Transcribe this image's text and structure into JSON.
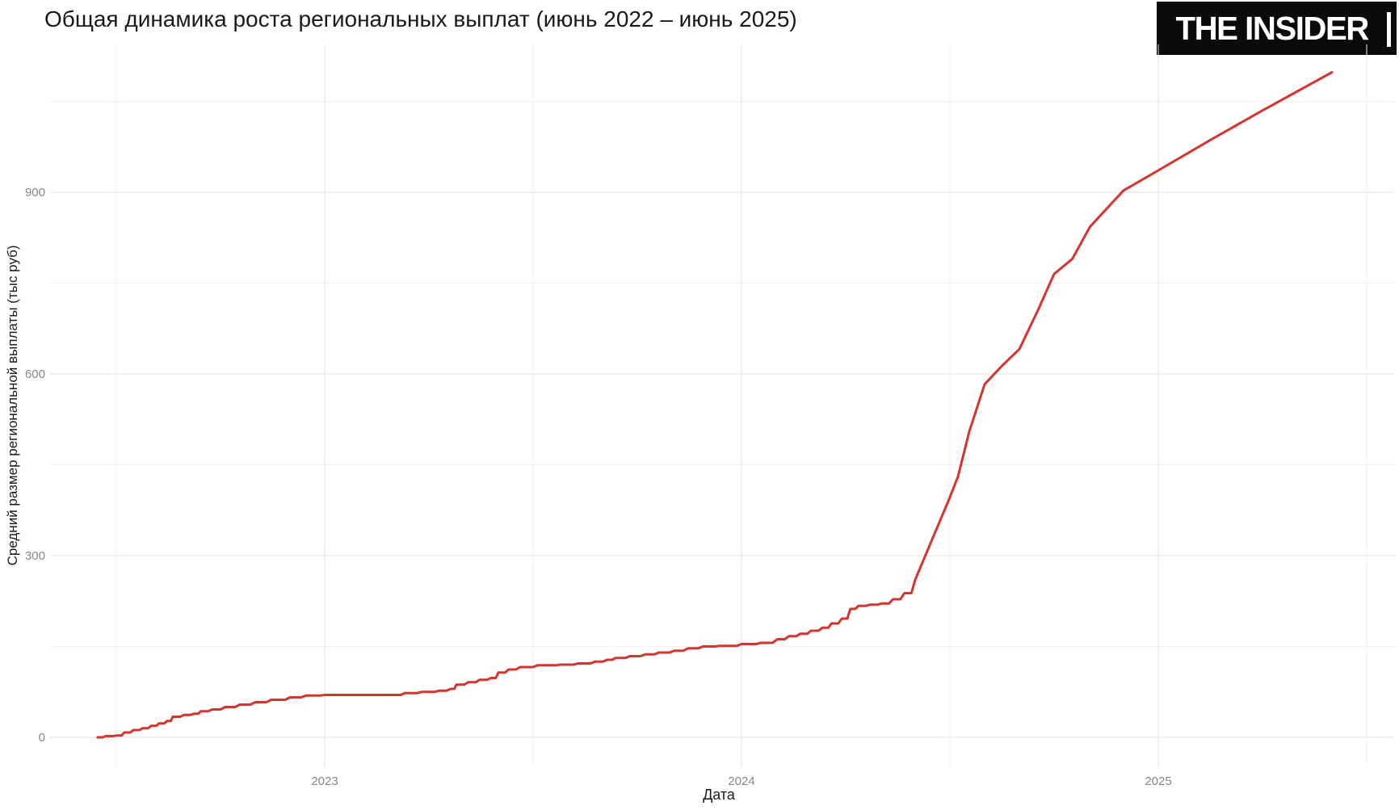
{
  "header": {
    "title": "Общая динамика роста региональных выплат (июнь 2022 – июнь 2025)",
    "logo_text": "THE INSIDER"
  },
  "chart_data": {
    "type": "line",
    "title": "Общая динамика роста региональных выплат (июнь 2022 – июнь 2025)",
    "xlabel": "Дата",
    "ylabel": "Средний размер региональной выплаты (тыс руб)",
    "x_tick_labels": [
      "2023",
      "2024",
      "2025"
    ],
    "x_major_ticks": [
      "2023-01-01",
      "2024-01-01",
      "2025-01-01"
    ],
    "x_minor_ticks": [
      "2022-07-01",
      "2023-07-01",
      "2024-07-01",
      "2025-07-01"
    ],
    "y_tick_labels": [
      "0",
      "300",
      "600",
      "900"
    ],
    "y_major_ticks": [
      0,
      300,
      600,
      900
    ],
    "y_minor_ticks": [
      150,
      450,
      750,
      1050
    ],
    "xlim": [
      "2022-06-01",
      "2025-07-15"
    ],
    "ylim": [
      0,
      1140
    ],
    "grid": "on",
    "legend": "none",
    "line_color": "#d6342e",
    "series": [
      {
        "name": "Средний размер региональной выплаты",
        "step_until": "2024-05-25",
        "points": [
          [
            "2022-06-15",
            0
          ],
          [
            "2022-06-22",
            2
          ],
          [
            "2022-07-01",
            3
          ],
          [
            "2022-07-08",
            8
          ],
          [
            "2022-07-16",
            12
          ],
          [
            "2022-07-24",
            15
          ],
          [
            "2022-08-01",
            19
          ],
          [
            "2022-08-08",
            23
          ],
          [
            "2022-08-15",
            27
          ],
          [
            "2022-08-20",
            34
          ],
          [
            "2022-08-30",
            37
          ],
          [
            "2022-09-08",
            39
          ],
          [
            "2022-09-14",
            43
          ],
          [
            "2022-09-24",
            46
          ],
          [
            "2022-10-05",
            50
          ],
          [
            "2022-10-18",
            54
          ],
          [
            "2022-11-01",
            58
          ],
          [
            "2022-11-15",
            62
          ],
          [
            "2022-12-01",
            66
          ],
          [
            "2022-12-15",
            69
          ],
          [
            "2023-01-01",
            70
          ],
          [
            "2023-02-01",
            70
          ],
          [
            "2023-03-01",
            70
          ],
          [
            "2023-03-10",
            73
          ],
          [
            "2023-03-25",
            75
          ],
          [
            "2023-04-10",
            77
          ],
          [
            "2023-04-20",
            80
          ],
          [
            "2023-04-25",
            87
          ],
          [
            "2023-05-05",
            91
          ],
          [
            "2023-05-15",
            95
          ],
          [
            "2023-05-25",
            98
          ],
          [
            "2023-06-01",
            107
          ],
          [
            "2023-06-10",
            112
          ],
          [
            "2023-06-20",
            116
          ],
          [
            "2023-07-05",
            119
          ],
          [
            "2023-07-25",
            120
          ],
          [
            "2023-08-10",
            122
          ],
          [
            "2023-08-25",
            125
          ],
          [
            "2023-09-05",
            128
          ],
          [
            "2023-09-12",
            131
          ],
          [
            "2023-09-25",
            134
          ],
          [
            "2023-10-08",
            137
          ],
          [
            "2023-10-20",
            140
          ],
          [
            "2023-11-03",
            143
          ],
          [
            "2023-11-15",
            147
          ],
          [
            "2023-11-28",
            150
          ],
          [
            "2023-12-12",
            151
          ],
          [
            "2024-01-01",
            154
          ],
          [
            "2024-01-18",
            156
          ],
          [
            "2024-02-02",
            162
          ],
          [
            "2024-02-12",
            167
          ],
          [
            "2024-02-22",
            171
          ],
          [
            "2024-03-01",
            176
          ],
          [
            "2024-03-11",
            181
          ],
          [
            "2024-03-19",
            188
          ],
          [
            "2024-03-28",
            196
          ],
          [
            "2024-04-05",
            212
          ],
          [
            "2024-04-12",
            217
          ],
          [
            "2024-04-22",
            219
          ],
          [
            "2024-05-02",
            221
          ],
          [
            "2024-05-12",
            228
          ],
          [
            "2024-05-22",
            238
          ],
          [
            "2024-06-01",
            260
          ],
          [
            "2024-06-15",
            323
          ],
          [
            "2024-06-30",
            390
          ],
          [
            "2024-07-08",
            430
          ],
          [
            "2024-07-18",
            505
          ],
          [
            "2024-08-01",
            583
          ],
          [
            "2024-08-16",
            613
          ],
          [
            "2024-09-01",
            641
          ],
          [
            "2024-09-17",
            704
          ],
          [
            "2024-10-01",
            765
          ],
          [
            "2024-10-17",
            790
          ],
          [
            "2024-11-02",
            843
          ],
          [
            "2024-12-01",
            903
          ],
          [
            "2025-01-01",
            936
          ],
          [
            "2025-02-15",
            985
          ],
          [
            "2025-04-01",
            1035
          ],
          [
            "2025-06-01",
            1098
          ]
        ]
      }
    ]
  },
  "colors": {
    "line": "#d6342e",
    "grid_major": "#e3e3e3",
    "grid_minor": "#f0f0f0",
    "tick_label": "#878787",
    "title": "#1a1a1a",
    "logo_bg": "#0a0a0a",
    "logo_fg": "#ffffff"
  }
}
